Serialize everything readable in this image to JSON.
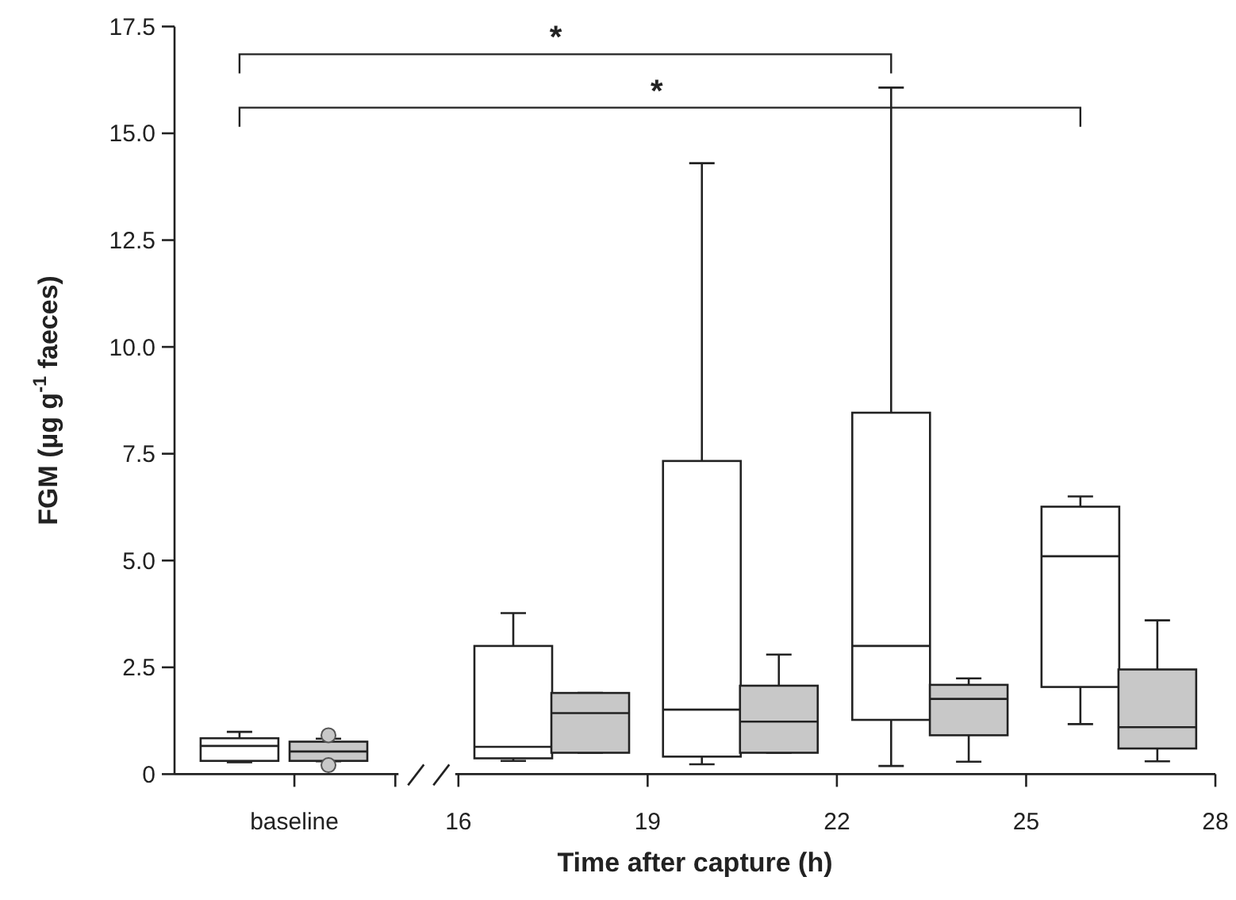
{
  "chart_data": {
    "type": "box",
    "xlabel": "Time after capture (h)",
    "ylabel": "FGM (µg g$^{-1}$ faeces)",
    "xlim": [
      11.5,
      28
    ],
    "xticks": [
      {
        "value": 13.4,
        "label": "baseline"
      },
      {
        "value": 15,
        "label": null
      },
      16,
      19,
      22,
      25,
      28
    ],
    "ylim": [
      0,
      17.5
    ],
    "yticks": [
      0,
      2.5,
      {
        "value": 5,
        "label": "5.0"
      },
      7.5,
      {
        "value": 10,
        "label": "10.0"
      },
      12.5,
      {
        "value": 15,
        "label": "15.0"
      },
      17.5
    ],
    "series": [
      {
        "color": "#ffffff",
        "x": [
          12.53,
          16.87,
          19.86,
          22.86,
          25.86
        ],
        "boxes": [
          {
            "low": 0.28,
            "q1": 0.31,
            "median": 0.66,
            "q3": 0.84,
            "high": 0.99
          },
          {
            "low": 0.31,
            "q1": 0.37,
            "median": 0.64,
            "q3": 3.0,
            "high": 3.77
          },
          {
            "low": 0.23,
            "q1": 0.41,
            "median": 1.51,
            "q3": 7.33,
            "high": 14.3
          },
          {
            "low": 0.19,
            "q1": 1.27,
            "median": 3.0,
            "q3": 8.46,
            "high": 16.07
          },
          {
            "low": 1.17,
            "q1": 2.04,
            "median": 5.1,
            "q3": 6.26,
            "high": 6.5
          }
        ]
      },
      {
        "color": "#c8c8c8",
        "x": [
          13.94,
          18.09,
          21.08,
          24.09,
          27.08
        ],
        "boxes": [
          {
            "low": 0.3,
            "q1": 0.31,
            "median": 0.53,
            "q3": 0.76,
            "high": 0.83,
            "outliers": [
              0.91,
              0.21
            ]
          },
          {
            "low": 0.5,
            "q1": 0.5,
            "median": 1.43,
            "q3": 1.9,
            "high": 1.9
          },
          {
            "low": 0.5,
            "q1": 0.5,
            "median": 1.23,
            "q3": 2.07,
            "high": 2.8
          },
          {
            "low": 0.29,
            "q1": 0.91,
            "median": 1.76,
            "q3": 2.09,
            "high": 2.24
          },
          {
            "low": 0.3,
            "q1": 0.6,
            "median": 1.1,
            "q3": 2.45,
            "high": 3.6
          }
        ]
      }
    ],
    "annotations": [
      "*",
      "*"
    ]
  }
}
